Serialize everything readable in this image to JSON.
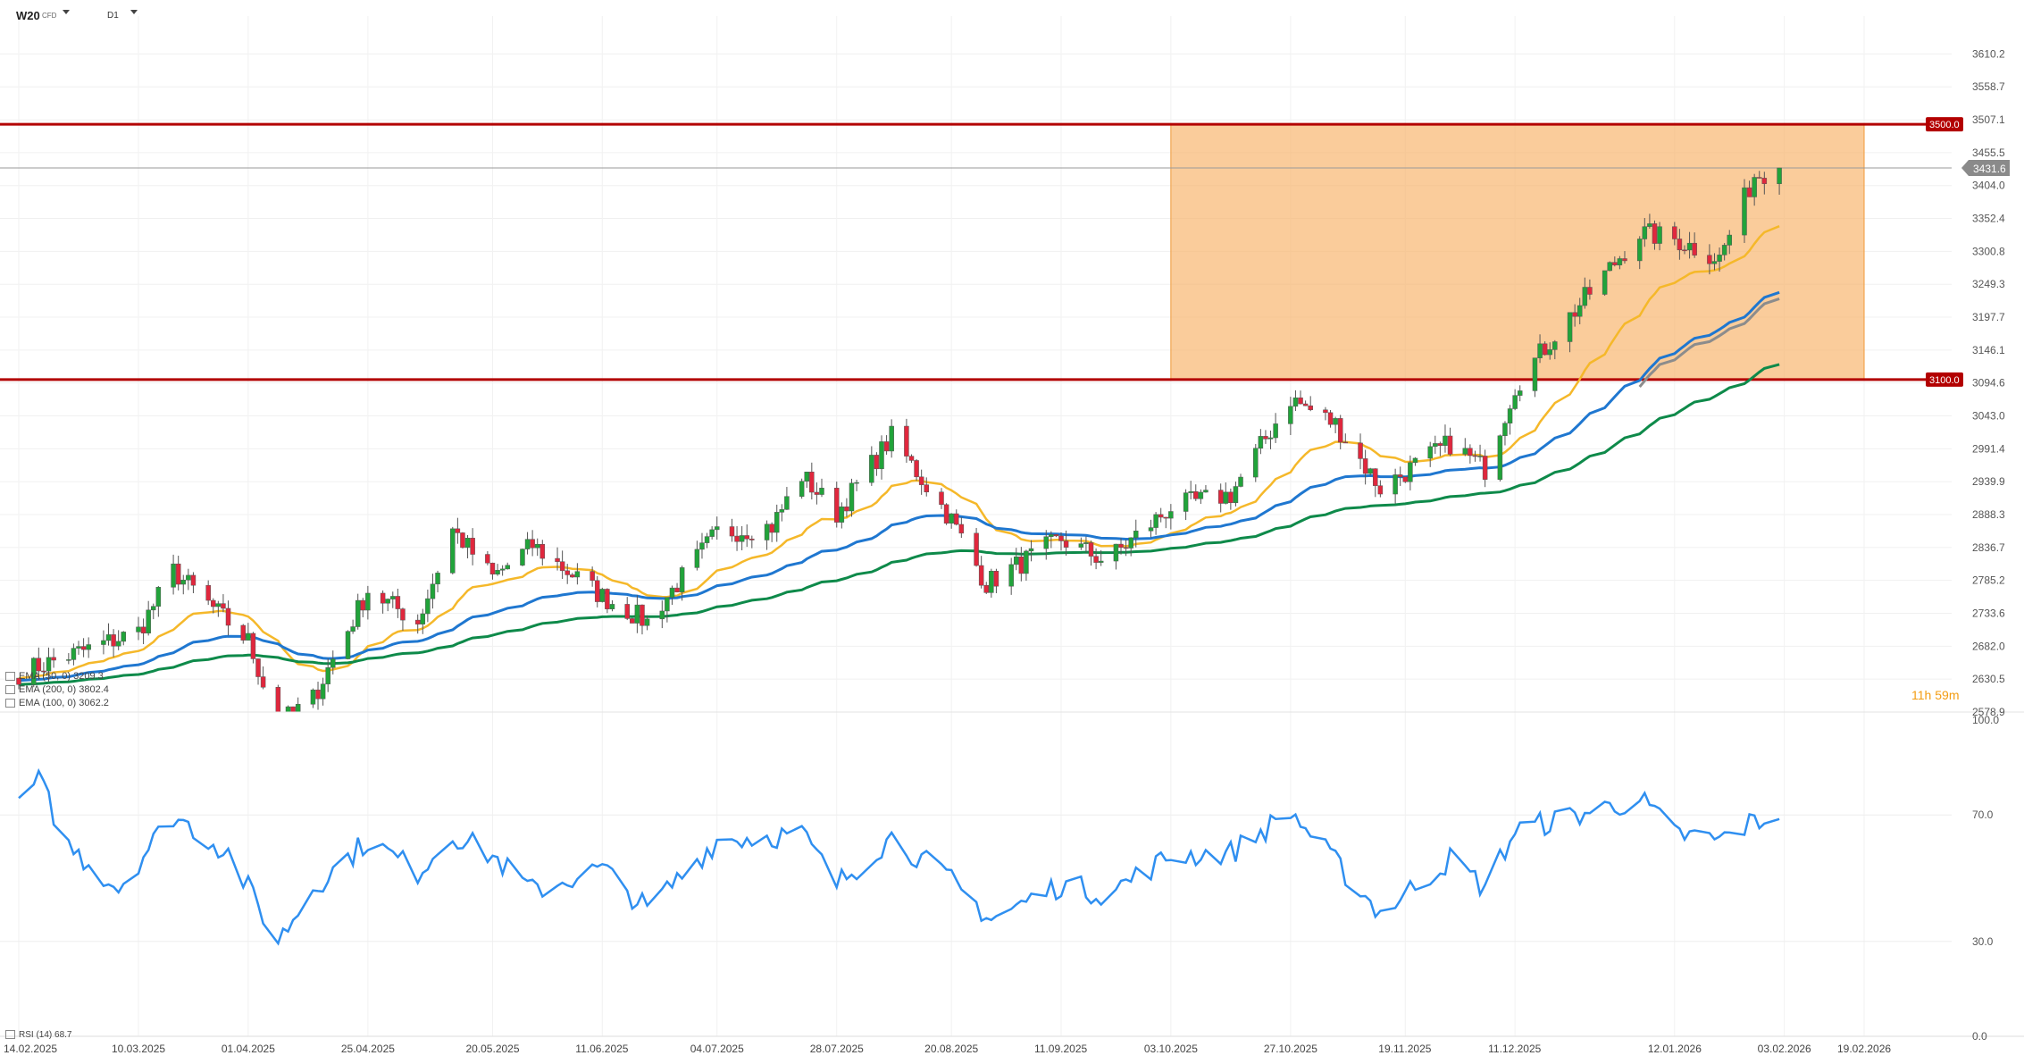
{
  "header": {
    "symbol": "W20",
    "symbol_type": "CFD",
    "timeframe": "D1"
  },
  "timer": {
    "hours": "11",
    "h_unit": "h",
    "minutes": "59",
    "m_unit": "m"
  },
  "indicators": {
    "ema1": "EMA (50, 0) 3209.3",
    "ema2": "EMA (200, 0) 3802.4",
    "ema3": "EMA (100, 0) 3062.2",
    "rsi": "RSI (14) 68.7"
  },
  "colors": {
    "up": "#21a33a",
    "down": "#e0273d",
    "ema_fast": "#f5b82a",
    "ema_mid": "#1f77d0",
    "ema_grey": "#8c8c8c",
    "ema_slow": "#0e8a4a",
    "level": "#b30000",
    "zone": "#f7b165",
    "rsi": "#2f8ff0"
  },
  "chart_data": [
    {
      "type": "candlestick",
      "ylim": [
        2578.9,
        3636
      ],
      "y_ticks": [
        "3610.2",
        "3558.7",
        "3507.1",
        "3455.5",
        "3404.0",
        "3352.4",
        "3300.8",
        "3249.3",
        "3197.7",
        "3146.1",
        "3094.6",
        "3043.0",
        "2991.4",
        "2939.9",
        "2888.3",
        "2836.7",
        "2785.2",
        "2733.6",
        "2682.0",
        "2630.5",
        "2578.9"
      ],
      "x_labels": [
        "14.02.2025",
        "10.03.2025",
        "01.04.2025",
        "25.04.2025",
        "20.05.2025",
        "11.06.2025",
        "04.07.2025",
        "28.07.2025",
        "20.08.2025",
        "11.09.2025",
        "03.10.2025",
        "27.10.2025",
        "19.11.2025",
        "11.12.2025",
        "12.01.2026",
        "03.02.2026",
        "19.02.2026"
      ],
      "levels": [
        {
          "value": 3500,
          "label": "3500.0"
        },
        {
          "value": 3100,
          "label": "3100.0"
        }
      ],
      "current_price": {
        "value": 3431.6,
        "label": "3431.6"
      },
      "zone": {
        "from_date": "03.10.2025",
        "to_date": "19.02.2026",
        "low": 3100,
        "high": 3500
      },
      "series": [
        {
          "name": "EMA (50, 0)",
          "style": "line"
        },
        {
          "name": "EMA (100, 0)",
          "style": "line"
        },
        {
          "name": "EMA (200, 0)",
          "style": "line"
        }
      ],
      "waypoints": [
        {
          "date": "14.02.2025",
          "close": 2640
        },
        {
          "date": "10.03.2025",
          "close": 2705
        },
        {
          "date": "17.03.2025",
          "close": 2800
        },
        {
          "date": "01.04.2025",
          "close": 2690
        },
        {
          "date": "07.04.2025",
          "close": 2560
        },
        {
          "date": "14.04.2025",
          "close": 2600
        },
        {
          "date": "25.04.2025",
          "close": 2770
        },
        {
          "date": "05.05.2025",
          "close": 2720
        },
        {
          "date": "12.05.2025",
          "close": 2865
        },
        {
          "date": "20.05.2025",
          "close": 2790
        },
        {
          "date": "28.05.2025",
          "close": 2840
        },
        {
          "date": "11.06.2025",
          "close": 2760
        },
        {
          "date": "20.06.2025",
          "close": 2720
        },
        {
          "date": "04.07.2025",
          "close": 2860
        },
        {
          "date": "15.07.2025",
          "close": 2870
        },
        {
          "date": "21.07.2025",
          "close": 2950
        },
        {
          "date": "28.07.2025",
          "close": 2890
        },
        {
          "date": "08.08.2025",
          "close": 3010
        },
        {
          "date": "20.08.2025",
          "close": 2880
        },
        {
          "date": "27.08.2025",
          "close": 2780
        },
        {
          "date": "11.09.2025",
          "close": 2850
        },
        {
          "date": "20.09.2025",
          "close": 2815
        },
        {
          "date": "03.10.2025",
          "close": 2900
        },
        {
          "date": "15.10.2025",
          "close": 2920
        },
        {
          "date": "27.10.2025",
          "close": 3070
        },
        {
          "date": "05.11.2025",
          "close": 3030
        },
        {
          "date": "14.11.2025",
          "close": 2930
        },
        {
          "date": "28.11.2025",
          "close": 3000
        },
        {
          "date": "05.12.2025",
          "close": 2960
        },
        {
          "date": "11.12.2025",
          "close": 3090
        },
        {
          "date": "20.12.2025",
          "close": 3180
        },
        {
          "date": "05.01.2026",
          "close": 3330
        },
        {
          "date": "12.01.2026",
          "close": 3320
        },
        {
          "date": "21.01.2026",
          "close": 3290
        },
        {
          "date": "28.01.2026",
          "close": 3420
        },
        {
          "date": "02.02.2026",
          "close": 3431.6
        }
      ]
    },
    {
      "type": "line",
      "name": "RSI (14)",
      "ylim": [
        0,
        100
      ],
      "y_ticks": [
        "100.0",
        "70.0",
        "30.0",
        "0.0"
      ],
      "last_value": 68.7,
      "waypoints": [
        {
          "date": "14.02.2025",
          "value": 74
        },
        {
          "date": "18.02.2025",
          "value": 81
        },
        {
          "date": "24.02.2025",
          "value": 60
        },
        {
          "date": "06.03.2025",
          "value": 47
        },
        {
          "date": "17.03.2025",
          "value": 70
        },
        {
          "date": "28.03.2025",
          "value": 58
        },
        {
          "date": "07.04.2025",
          "value": 30
        },
        {
          "date": "14.04.2025",
          "value": 47
        },
        {
          "date": "25.04.2025",
          "value": 62
        },
        {
          "date": "05.05.2025",
          "value": 52
        },
        {
          "date": "12.05.2025",
          "value": 64
        },
        {
          "date": "20.05.2025",
          "value": 57
        },
        {
          "date": "28.05.2025",
          "value": 46
        },
        {
          "date": "11.06.2025",
          "value": 53
        },
        {
          "date": "20.06.2025",
          "value": 40
        },
        {
          "date": "04.07.2025",
          "value": 62
        },
        {
          "date": "21.07.2025",
          "value": 64
        },
        {
          "date": "28.07.2025",
          "value": 48
        },
        {
          "date": "08.08.2025",
          "value": 63
        },
        {
          "date": "20.08.2025",
          "value": 49
        },
        {
          "date": "28.08.2025",
          "value": 37
        },
        {
          "date": "11.09.2025",
          "value": 48
        },
        {
          "date": "20.09.2025",
          "value": 45
        },
        {
          "date": "03.10.2025",
          "value": 57
        },
        {
          "date": "15.10.2025",
          "value": 58
        },
        {
          "date": "27.10.2025",
          "value": 71
        },
        {
          "date": "05.11.2025",
          "value": 55
        },
        {
          "date": "14.11.2025",
          "value": 39
        },
        {
          "date": "28.11.2025",
          "value": 56
        },
        {
          "date": "05.12.2025",
          "value": 47
        },
        {
          "date": "11.12.2025",
          "value": 65
        },
        {
          "date": "05.01.2026",
          "value": 75
        },
        {
          "date": "12.01.2026",
          "value": 64
        },
        {
          "date": "21.01.2026",
          "value": 62
        },
        {
          "date": "28.01.2026",
          "value": 68
        },
        {
          "date": "02.02.2026",
          "value": 68.7
        }
      ]
    }
  ]
}
